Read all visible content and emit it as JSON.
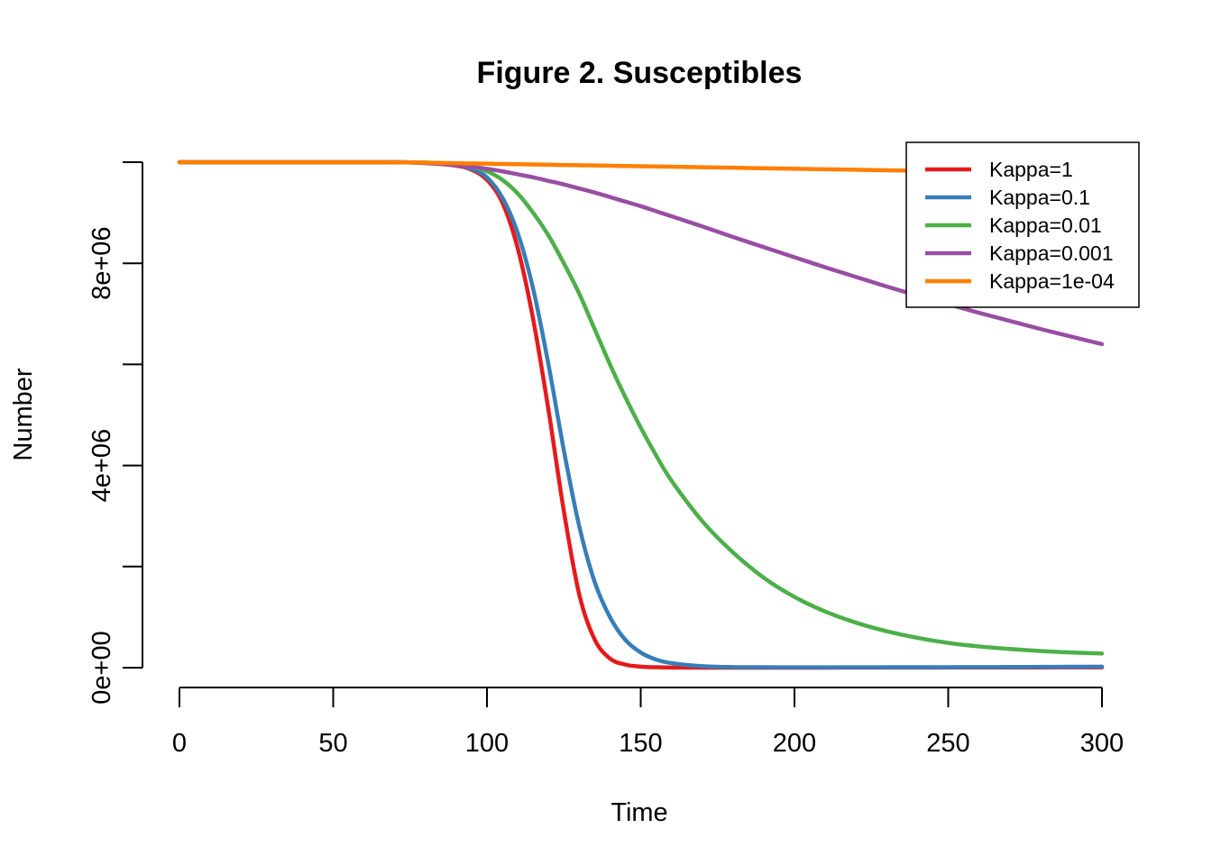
{
  "chart_data": {
    "type": "line",
    "title": "Figure 2. Susceptibles",
    "xlabel": "Time",
    "ylabel": "Number",
    "xlim": [
      0,
      300
    ],
    "ylim": [
      0,
      10000000
    ],
    "x_ticks": [
      0,
      50,
      100,
      150,
      200,
      250,
      300
    ],
    "x_tick_labels": [
      "0",
      "50",
      "100",
      "150",
      "200",
      "250",
      "300"
    ],
    "y_ticks": [
      0,
      2000000,
      4000000,
      6000000,
      8000000,
      10000000
    ],
    "y_tick_labels": [
      "0e+00",
      "",
      "4e+06",
      "",
      "8e+06",
      ""
    ],
    "grid": false,
    "legend_position": "top-right",
    "x": [
      0,
      10,
      20,
      30,
      40,
      50,
      60,
      70,
      80,
      90,
      95,
      100,
      105,
      110,
      115,
      120,
      125,
      130,
      135,
      140,
      145,
      150,
      155,
      160,
      170,
      180,
      190,
      200,
      210,
      220,
      230,
      240,
      250,
      260,
      270,
      280,
      290,
      300
    ],
    "series": [
      {
        "name": "Kappa=1",
        "color": "#E41A1C",
        "values": [
          10000000,
          10000000,
          10000000,
          10000000,
          10000000,
          10000000,
          10000000,
          9999000,
          9990000,
          9930000,
          9850000,
          9650000,
          9200000,
          8300000,
          6900000,
          5100000,
          3100000,
          1450000,
          560000,
          180000,
          60000,
          20000,
          8000,
          3000,
          1000,
          500,
          600,
          800,
          1100,
          1500,
          2000,
          2600,
          3300,
          4000,
          4700,
          5400,
          6200,
          7000
        ]
      },
      {
        "name": "Kappa=0.1",
        "color": "#377EB8",
        "values": [
          10000000,
          10000000,
          10000000,
          10000000,
          10000000,
          10000000,
          10000000,
          9999000,
          9990000,
          9940000,
          9870000,
          9700000,
          9300000,
          8600000,
          7500000,
          6000000,
          4300000,
          2800000,
          1700000,
          1000000,
          550000,
          300000,
          160000,
          90000,
          30000,
          12000,
          8000,
          7000,
          7000,
          7500,
          8000,
          9000,
          10000,
          11500,
          13000,
          15000,
          17000,
          20000
        ]
      },
      {
        "name": "Kappa=0.01",
        "color": "#4DAF4A",
        "values": [
          10000000,
          10000000,
          10000000,
          10000000,
          10000000,
          10000000,
          10000000,
          9999000,
          9990000,
          9950000,
          9910000,
          9820000,
          9650000,
          9380000,
          9000000,
          8550000,
          8000000,
          7400000,
          6700000,
          6000000,
          5350000,
          4750000,
          4200000,
          3700000,
          2900000,
          2280000,
          1780000,
          1400000,
          1110000,
          890000,
          720000,
          590000,
          490000,
          420000,
          370000,
          330000,
          300000,
          280000
        ]
      },
      {
        "name": "Kappa=0.001",
        "color": "#984EA3",
        "values": [
          10000000,
          10000000,
          10000000,
          10000000,
          10000000,
          10000000,
          10000000,
          9999000,
          9980000,
          9940000,
          9910000,
          9870000,
          9820000,
          9760000,
          9700000,
          9630000,
          9560000,
          9480000,
          9400000,
          9310000,
          9220000,
          9130000,
          9030000,
          8930000,
          8730000,
          8520000,
          8320000,
          8120000,
          7920000,
          7730000,
          7540000,
          7360000,
          7190000,
          7020000,
          6860000,
          6700000,
          6550000,
          6400000
        ]
      },
      {
        "name": "Kappa=1e-04",
        "color": "#FF7F00",
        "values": [
          10000000,
          10000000,
          10000000,
          10000000,
          10000000,
          10000000,
          10000000,
          10000000,
          9990000,
          9980000,
          9975000,
          9970000,
          9965000,
          9960000,
          9955000,
          9950000,
          9945000,
          9940000,
          9935000,
          9930000,
          9925000,
          9920000,
          9915000,
          9910000,
          9900000,
          9890000,
          9880000,
          9870000,
          9860000,
          9850000,
          9840000,
          9830000,
          9820000,
          9810000,
          9800000,
          9790000,
          9780000,
          9770000
        ]
      }
    ]
  }
}
